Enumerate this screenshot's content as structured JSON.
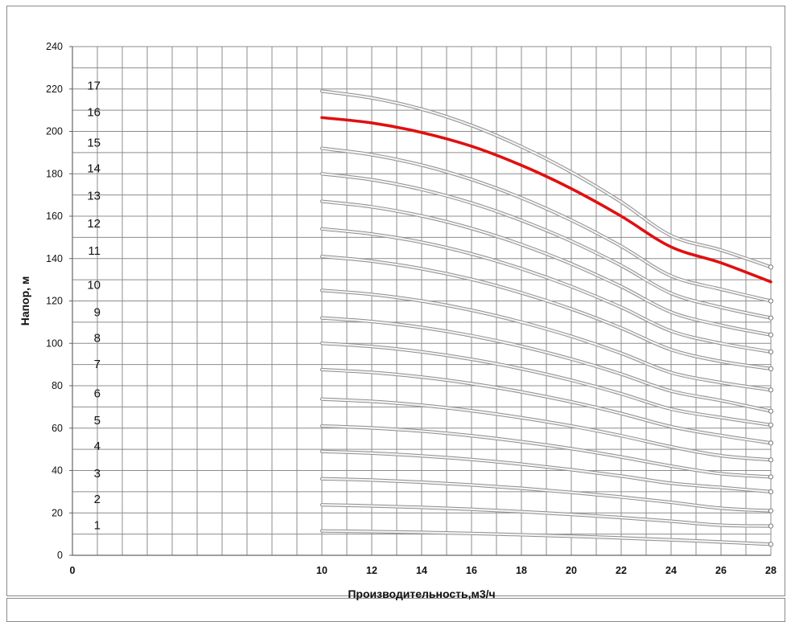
{
  "chart_data": {
    "type": "line",
    "xlabel": "Производительность,м3/ч",
    "ylabel": "Напор, м",
    "xlim": [
      0,
      28
    ],
    "ylim": [
      0,
      240
    ],
    "x_ticks": [
      0,
      10,
      12,
      14,
      16,
      18,
      20,
      22,
      24,
      26,
      28
    ],
    "y_ticks": [
      0,
      20,
      40,
      60,
      80,
      100,
      120,
      140,
      160,
      180,
      200,
      220,
      240
    ],
    "grid": true,
    "highlight_color": "#e01010",
    "curve_color": "#b8b8b8",
    "x": [
      10,
      12,
      14,
      16,
      18,
      20,
      22,
      24,
      26,
      28
    ],
    "series": [
      {
        "name": "1",
        "values": [
          11.5,
          11.2,
          10.8,
          10.3,
          9.7,
          9.0,
          8.2,
          7.3,
          6.3,
          5.2
        ]
      },
      {
        "name": "2",
        "values": [
          23.8,
          23.3,
          22.6,
          21.7,
          20.6,
          19.3,
          17.8,
          16.1,
          14.2,
          13.8
        ]
      },
      {
        "name": "3",
        "values": [
          36.1,
          35.5,
          34.5,
          33.2,
          31.6,
          29.7,
          27.5,
          25.0,
          22.2,
          21.0
        ]
      },
      {
        "name": "4",
        "values": [
          49.0,
          48.2,
          46.9,
          45.2,
          43.0,
          40.4,
          37.4,
          34.0,
          32.0,
          30.0
        ]
      },
      {
        "name": "5",
        "values": [
          61.0,
          60.1,
          58.6,
          56.4,
          53.6,
          50.3,
          46.4,
          42.1,
          38.5,
          37.0
        ]
      },
      {
        "name": "6",
        "values": [
          73.7,
          72.6,
          70.8,
          68.2,
          64.9,
          61.0,
          56.4,
          51.2,
          47.0,
          45.0
        ]
      },
      {
        "name": "7",
        "values": [
          87.6,
          86.3,
          84.1,
          81.0,
          77.1,
          72.4,
          66.9,
          60.7,
          56.5,
          53.0
        ]
      },
      {
        "name": "8",
        "values": [
          100.0,
          98.5,
          96.0,
          92.5,
          88.0,
          82.6,
          76.2,
          69.0,
          65.0,
          61.5
        ]
      },
      {
        "name": "9",
        "values": [
          112.0,
          110.3,
          107.5,
          103.6,
          98.6,
          92.6,
          85.5,
          77.5,
          73.0,
          68.0
        ]
      },
      {
        "name": "10",
        "values": [
          125.0,
          123.1,
          120.0,
          115.6,
          110.0,
          103.3,
          95.3,
          86.2,
          81.5,
          78.0
        ]
      },
      {
        "name": "11",
        "values": [
          141.0,
          138.8,
          135.2,
          130.2,
          123.8,
          116.2,
          107.2,
          97.0,
          91.5,
          88.0
        ]
      },
      {
        "name": "12",
        "values": [
          154.0,
          151.6,
          147.7,
          142.2,
          135.2,
          126.8,
          117.0,
          105.8,
          100.0,
          96.0
        ]
      },
      {
        "name": "13",
        "values": [
          167.0,
          164.4,
          160.1,
          154.2,
          146.6,
          137.5,
          126.8,
          114.7,
          108.5,
          104.0
        ]
      },
      {
        "name": "14",
        "values": [
          180.0,
          177.2,
          172.6,
          166.2,
          158.0,
          148.2,
          136.7,
          123.6,
          117.0,
          112.0
        ]
      },
      {
        "name": "15",
        "values": [
          192.0,
          189.0,
          184.1,
          177.3,
          168.6,
          158.1,
          145.8,
          131.8,
          125.5,
          120.0
        ]
      },
      {
        "name": "16",
        "values": [
          206.5,
          204.0,
          199.5,
          193.0,
          184.0,
          173.0,
          160.0,
          145.5,
          138.0,
          129.0
        ],
        "highlight": true
      },
      {
        "name": "17",
        "values": [
          219.0,
          215.8,
          210.5,
          202.8,
          192.8,
          180.8,
          166.7,
          150.8,
          144.0,
          136.0
        ]
      }
    ]
  }
}
